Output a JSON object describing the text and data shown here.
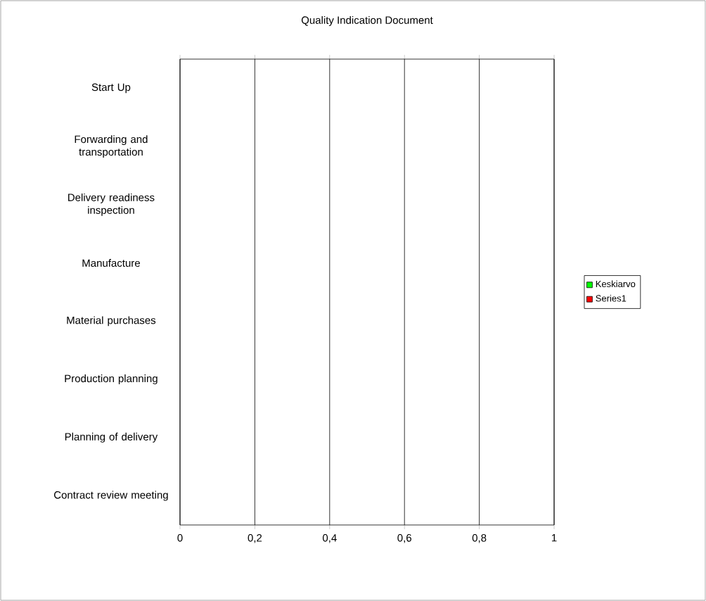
{
  "chart_data": {
    "type": "bar",
    "orientation": "horizontal",
    "title": "Quality Indication Document",
    "categories": [
      "Start  Up",
      "Forwarding and transportation",
      "Delivery readiness inspection",
      "Manufacture",
      "Material purchases",
      "Production planning",
      "Planning of delivery",
      "Contract review meeting"
    ],
    "series": [
      {
        "name": "Keskiarvo",
        "color": "#00ff00",
        "values": [
          null,
          null,
          null,
          null,
          null,
          null,
          null,
          null
        ]
      },
      {
        "name": "Series1",
        "color": "#ff0000",
        "values": [
          null,
          null,
          null,
          null,
          null,
          null,
          null,
          null
        ]
      }
    ],
    "xlim": [
      0,
      1
    ],
    "xticks": [
      0,
      {
        "value": 0.2,
        "label": "0,2"
      },
      {
        "value": 0.4,
        "label": "0,4"
      },
      {
        "value": 0.6,
        "label": "0,6"
      },
      {
        "value": 0.8,
        "label": "0,8"
      },
      1
    ],
    "grid": "x",
    "legend": "right"
  }
}
